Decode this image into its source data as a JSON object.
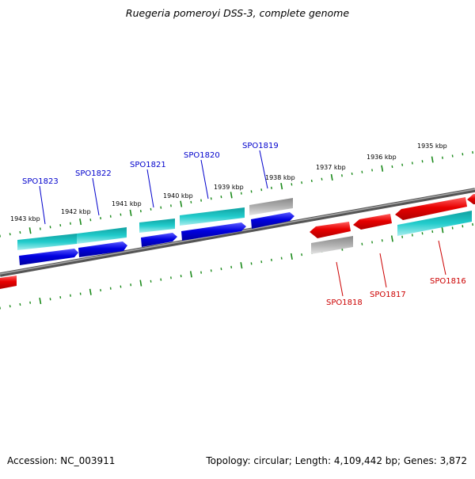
{
  "title": "Ruegeria pomeroyi DSS-3, complete genome",
  "accession": "Accession: NC_003911",
  "topology": "Topology: circular; Length: 4,109,442 bp; Genes: 3,872",
  "kbp_labels": [
    "1943 kbp",
    "1942 kbp",
    "1941 kbp",
    "1940 kbp",
    "1939 kbp",
    "1938 kbp",
    "1937 kbp",
    "1936 kbp",
    "1935 kbp"
  ],
  "genes_forward": [
    "SPO1823",
    "SPO1822",
    "SPO1821",
    "SPO1820",
    "SPO1819"
  ],
  "genes_reverse": [
    "SPO1818",
    "SPO1817",
    "SPO1816"
  ],
  "colors": {
    "forward_gene": "#0000cc",
    "reverse_gene": "#cc0000",
    "ortholog_bar": "#1ec8c8",
    "no_ortholog_bar": "#aaaaaa",
    "backbone": "#777777",
    "ticks": "#1a8a1a"
  }
}
